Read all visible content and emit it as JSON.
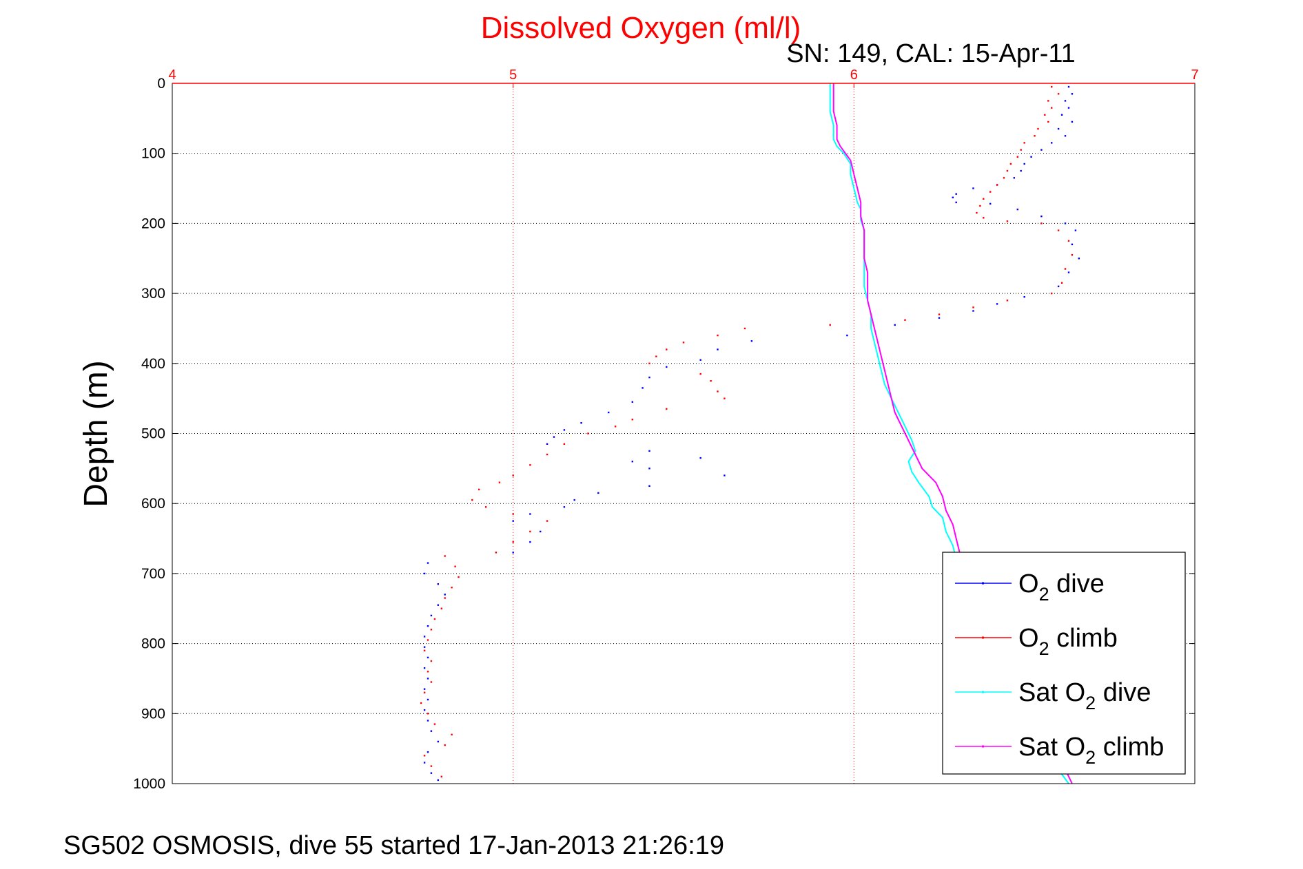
{
  "chart_data": {
    "type": "scatter",
    "title": "Dissolved Oxygen (ml/l)",
    "subtitle": "SN: 149, CAL: 15-Apr-11",
    "ylabel": "Depth (m)",
    "xlabel": "",
    "footer": "SG502 OSMOSIS, dive 55 started 17-Jan-2013 21:26:19",
    "xlim": [
      4,
      7
    ],
    "ylim": [
      0,
      1000
    ],
    "y_reversed": true,
    "x_axis_position": "top",
    "xticks": [
      "4",
      "5",
      "6",
      "7"
    ],
    "yticks": [
      "0",
      "100",
      "200",
      "300",
      "400",
      "500",
      "600",
      "700",
      "800",
      "900",
      "1000"
    ],
    "grid": true,
    "legend_position": "bottom-right",
    "series": [
      {
        "name_parts": [
          "O",
          "2",
          " dive"
        ],
        "color": "#0000ff",
        "style": "dots",
        "points": [
          [
            6.63,
            5
          ],
          [
            6.64,
            15
          ],
          [
            6.62,
            25
          ],
          [
            6.63,
            35
          ],
          [
            6.61,
            45
          ],
          [
            6.64,
            55
          ],
          [
            6.6,
            65
          ],
          [
            6.62,
            75
          ],
          [
            6.58,
            85
          ],
          [
            6.55,
            95
          ],
          [
            6.52,
            105
          ],
          [
            6.5,
            115
          ],
          [
            6.49,
            125
          ],
          [
            6.47,
            135
          ],
          [
            6.42,
            145
          ],
          [
            6.35,
            150
          ],
          [
            6.3,
            158
          ],
          [
            6.29,
            163
          ],
          [
            6.3,
            170
          ],
          [
            6.4,
            172
          ],
          [
            6.48,
            180
          ],
          [
            6.55,
            190
          ],
          [
            6.62,
            200
          ],
          [
            6.65,
            210
          ],
          [
            6.64,
            230
          ],
          [
            6.66,
            250
          ],
          [
            6.63,
            270
          ],
          [
            6.6,
            290
          ],
          [
            6.5,
            305
          ],
          [
            6.42,
            315
          ],
          [
            6.35,
            325
          ],
          [
            6.25,
            335
          ],
          [
            6.12,
            345
          ],
          [
            5.98,
            360
          ],
          [
            5.7,
            368
          ],
          [
            5.6,
            380
          ],
          [
            5.55,
            395
          ],
          [
            5.45,
            405
          ],
          [
            5.4,
            420
          ],
          [
            5.38,
            435
          ],
          [
            5.35,
            455
          ],
          [
            5.28,
            470
          ],
          [
            5.2,
            485
          ],
          [
            5.15,
            495
          ],
          [
            5.12,
            505
          ],
          [
            5.1,
            515
          ],
          [
            5.4,
            525
          ],
          [
            5.55,
            535
          ],
          [
            5.35,
            540
          ],
          [
            5.4,
            550
          ],
          [
            5.62,
            560
          ],
          [
            5.4,
            575
          ],
          [
            5.25,
            585
          ],
          [
            5.18,
            595
          ],
          [
            5.15,
            605
          ],
          [
            5.05,
            615
          ],
          [
            5.0,
            625
          ],
          [
            5.08,
            640
          ],
          [
            5.05,
            655
          ],
          [
            5.0,
            670
          ],
          [
            4.75,
            685
          ],
          [
            4.74,
            700
          ],
          [
            4.78,
            715
          ],
          [
            4.8,
            730
          ],
          [
            4.78,
            745
          ],
          [
            4.76,
            760
          ],
          [
            4.75,
            775
          ],
          [
            4.74,
            790
          ],
          [
            4.74,
            805
          ],
          [
            4.75,
            820
          ],
          [
            4.74,
            835
          ],
          [
            4.75,
            850
          ],
          [
            4.74,
            865
          ],
          [
            4.75,
            880
          ],
          [
            4.74,
            895
          ],
          [
            4.75,
            910
          ],
          [
            4.76,
            925
          ],
          [
            4.78,
            940
          ],
          [
            4.75,
            955
          ],
          [
            4.74,
            970
          ],
          [
            4.76,
            985
          ],
          [
            4.78,
            995
          ]
        ]
      },
      {
        "name_parts": [
          "O",
          "2",
          " climb"
        ],
        "color": "#ff0000",
        "style": "dots",
        "points": [
          [
            6.58,
            5
          ],
          [
            6.6,
            15
          ],
          [
            6.57,
            25
          ],
          [
            6.58,
            35
          ],
          [
            6.56,
            45
          ],
          [
            6.57,
            55
          ],
          [
            6.54,
            65
          ],
          [
            6.53,
            75
          ],
          [
            6.5,
            85
          ],
          [
            6.49,
            95
          ],
          [
            6.48,
            105
          ],
          [
            6.46,
            115
          ],
          [
            6.45,
            125
          ],
          [
            6.44,
            135
          ],
          [
            6.42,
            145
          ],
          [
            6.4,
            155
          ],
          [
            6.38,
            165
          ],
          [
            6.37,
            175
          ],
          [
            6.36,
            185
          ],
          [
            6.38,
            192
          ],
          [
            6.45,
            197
          ],
          [
            6.55,
            200
          ],
          [
            6.6,
            210
          ],
          [
            6.63,
            225
          ],
          [
            6.64,
            245
          ],
          [
            6.62,
            265
          ],
          [
            6.61,
            285
          ],
          [
            6.58,
            300
          ],
          [
            6.45,
            310
          ],
          [
            6.35,
            320
          ],
          [
            6.25,
            330
          ],
          [
            6.15,
            338
          ],
          [
            5.93,
            345
          ],
          [
            5.68,
            350
          ],
          [
            5.6,
            360
          ],
          [
            5.5,
            370
          ],
          [
            5.45,
            380
          ],
          [
            5.42,
            390
          ],
          [
            5.4,
            400
          ],
          [
            5.55,
            415
          ],
          [
            5.58,
            425
          ],
          [
            5.6,
            440
          ],
          [
            5.62,
            450
          ],
          [
            5.45,
            465
          ],
          [
            5.35,
            480
          ],
          [
            5.3,
            490
          ],
          [
            5.22,
            500
          ],
          [
            5.15,
            515
          ],
          [
            5.1,
            530
          ],
          [
            5.05,
            545
          ],
          [
            5.0,
            560
          ],
          [
            4.96,
            570
          ],
          [
            4.9,
            580
          ],
          [
            4.88,
            595
          ],
          [
            4.92,
            605
          ],
          [
            5.0,
            615
          ],
          [
            5.1,
            625
          ],
          [
            5.05,
            640
          ],
          [
            5.0,
            655
          ],
          [
            4.95,
            670
          ],
          [
            4.8,
            675
          ],
          [
            4.83,
            690
          ],
          [
            4.84,
            705
          ],
          [
            4.82,
            720
          ],
          [
            4.8,
            735
          ],
          [
            4.79,
            750
          ],
          [
            4.77,
            765
          ],
          [
            4.76,
            780
          ],
          [
            4.75,
            795
          ],
          [
            4.74,
            810
          ],
          [
            4.76,
            825
          ],
          [
            4.75,
            840
          ],
          [
            4.76,
            855
          ],
          [
            4.74,
            870
          ],
          [
            4.73,
            885
          ],
          [
            4.75,
            900
          ],
          [
            4.77,
            915
          ],
          [
            4.82,
            930
          ],
          [
            4.8,
            945
          ],
          [
            4.74,
            960
          ],
          [
            4.76,
            975
          ],
          [
            4.79,
            990
          ]
        ]
      },
      {
        "name_parts": [
          "Sat O",
          "2",
          " dive"
        ],
        "color": "#00ffff",
        "style": "line",
        "points": [
          [
            5.93,
            0
          ],
          [
            5.93,
            20
          ],
          [
            5.93,
            40
          ],
          [
            5.94,
            60
          ],
          [
            5.94,
            80
          ],
          [
            5.95,
            90
          ],
          [
            5.97,
            100
          ],
          [
            5.99,
            115
          ],
          [
            5.99,
            130
          ],
          [
            6.0,
            150
          ],
          [
            6.01,
            170
          ],
          [
            6.02,
            180
          ],
          [
            6.02,
            195
          ],
          [
            6.03,
            210
          ],
          [
            6.03,
            230
          ],
          [
            6.03,
            250
          ],
          [
            6.03,
            270
          ],
          [
            6.03,
            290
          ],
          [
            6.04,
            310
          ],
          [
            6.05,
            330
          ],
          [
            6.05,
            350
          ],
          [
            6.06,
            370
          ],
          [
            6.07,
            390
          ],
          [
            6.08,
            410
          ],
          [
            6.09,
            430
          ],
          [
            6.11,
            450
          ],
          [
            6.13,
            470
          ],
          [
            6.15,
            490
          ],
          [
            6.17,
            510
          ],
          [
            6.18,
            525
          ],
          [
            6.16,
            540
          ],
          [
            6.17,
            555
          ],
          [
            6.19,
            570
          ],
          [
            6.22,
            590
          ],
          [
            6.23,
            605
          ],
          [
            6.26,
            620
          ],
          [
            6.27,
            640
          ],
          [
            6.29,
            660
          ],
          [
            6.3,
            680
          ],
          [
            6.32,
            700
          ],
          [
            6.34,
            720
          ],
          [
            6.36,
            740
          ],
          [
            6.38,
            760
          ],
          [
            6.4,
            780
          ],
          [
            6.42,
            800
          ],
          [
            6.44,
            820
          ],
          [
            6.46,
            840
          ],
          [
            6.48,
            860
          ],
          [
            6.5,
            880
          ],
          [
            6.52,
            900
          ],
          [
            6.54,
            920
          ],
          [
            6.56,
            940
          ],
          [
            6.58,
            960
          ],
          [
            6.6,
            980
          ],
          [
            6.63,
            1000
          ]
        ]
      },
      {
        "name_parts": [
          "Sat O",
          "2",
          " climb"
        ],
        "color": "#ff00ff",
        "style": "line",
        "points": [
          [
            5.94,
            0
          ],
          [
            5.94,
            20
          ],
          [
            5.94,
            40
          ],
          [
            5.95,
            60
          ],
          [
            5.95,
            80
          ],
          [
            5.96,
            90
          ],
          [
            5.99,
            110
          ],
          [
            6.0,
            130
          ],
          [
            6.01,
            150
          ],
          [
            6.02,
            170
          ],
          [
            6.02,
            190
          ],
          [
            6.03,
            210
          ],
          [
            6.03,
            230
          ],
          [
            6.03,
            250
          ],
          [
            6.04,
            270
          ],
          [
            6.04,
            290
          ],
          [
            6.04,
            310
          ],
          [
            6.05,
            330
          ],
          [
            6.06,
            350
          ],
          [
            6.07,
            370
          ],
          [
            6.08,
            390
          ],
          [
            6.09,
            410
          ],
          [
            6.1,
            430
          ],
          [
            6.11,
            450
          ],
          [
            6.12,
            470
          ],
          [
            6.14,
            490
          ],
          [
            6.16,
            510
          ],
          [
            6.18,
            530
          ],
          [
            6.2,
            550
          ],
          [
            6.24,
            570
          ],
          [
            6.26,
            590
          ],
          [
            6.27,
            610
          ],
          [
            6.29,
            630
          ],
          [
            6.3,
            650
          ],
          [
            6.31,
            670
          ],
          [
            6.33,
            690
          ],
          [
            6.35,
            710
          ],
          [
            6.37,
            730
          ],
          [
            6.39,
            750
          ],
          [
            6.41,
            770
          ],
          [
            6.43,
            790
          ],
          [
            6.45,
            810
          ],
          [
            6.47,
            830
          ],
          [
            6.49,
            850
          ],
          [
            6.51,
            870
          ],
          [
            6.53,
            890
          ],
          [
            6.55,
            910
          ],
          [
            6.57,
            930
          ],
          [
            6.59,
            950
          ],
          [
            6.61,
            970
          ],
          [
            6.63,
            990
          ],
          [
            6.64,
            1000
          ]
        ]
      }
    ]
  }
}
